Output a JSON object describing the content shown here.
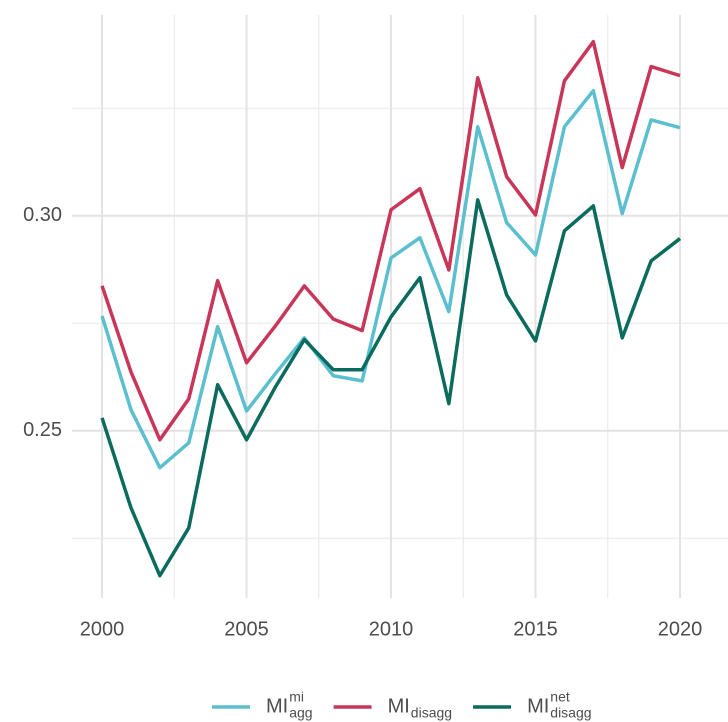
{
  "chart_data": {
    "type": "line",
    "x": [
      2000,
      2001,
      2002,
      2003,
      2004,
      2005,
      2006,
      2007,
      2008,
      2009,
      2010,
      2011,
      2012,
      2013,
      2014,
      2015,
      2016,
      2017,
      2018,
      2019,
      2020
    ],
    "series": [
      {
        "name": "MI",
        "superscript": "mi",
        "subscript": "agg",
        "color": "#5bbfd0",
        "values": [
          0.2767,
          0.2549,
          0.2414,
          0.2472,
          0.2742,
          0.2546,
          0.2633,
          0.2716,
          0.2628,
          0.2616,
          0.2902,
          0.2949,
          0.2777,
          0.3207,
          0.2984,
          0.2909,
          0.3207,
          0.3291,
          0.3005,
          0.3223,
          0.3205
        ]
      },
      {
        "name": "MI",
        "subscript": "disagg",
        "color": "#c8375a",
        "values": [
          0.2837,
          0.2637,
          0.2479,
          0.2574,
          0.2849,
          0.2658,
          0.2744,
          0.2837,
          0.276,
          0.2733,
          0.3014,
          0.3063,
          0.2874,
          0.3321,
          0.3091,
          0.3002,
          0.3314,
          0.3405,
          0.3112,
          0.3347,
          0.3326
        ]
      },
      {
        "name": "MI",
        "superscript": "net",
        "subscript": "disagg",
        "color": "#0a6b5e",
        "values": [
          0.253,
          0.2321,
          0.2163,
          0.2274,
          0.2607,
          0.2479,
          0.2602,
          0.2712,
          0.2642,
          0.2642,
          0.2765,
          0.2856,
          0.2563,
          0.3037,
          0.2816,
          0.2709,
          0.2965,
          0.3023,
          0.2716,
          0.2895,
          0.2947
        ]
      }
    ],
    "xlim": [
      1998.96,
      2021.66
    ],
    "xticks": [
      2000,
      2005,
      2010,
      2015,
      2020
    ],
    "minor_xticks": [
      2002.5,
      2007.5,
      2012.5,
      2017.5
    ],
    "ylim": [
      0.2111,
      0.3467
    ],
    "yticks": [
      0.25,
      {
        "value": 0.3,
        "label": "0.30"
      }
    ],
    "minor_yticks": [
      0.225,
      0.275,
      0.325
    ],
    "grid": true,
    "legend": "bottom"
  }
}
